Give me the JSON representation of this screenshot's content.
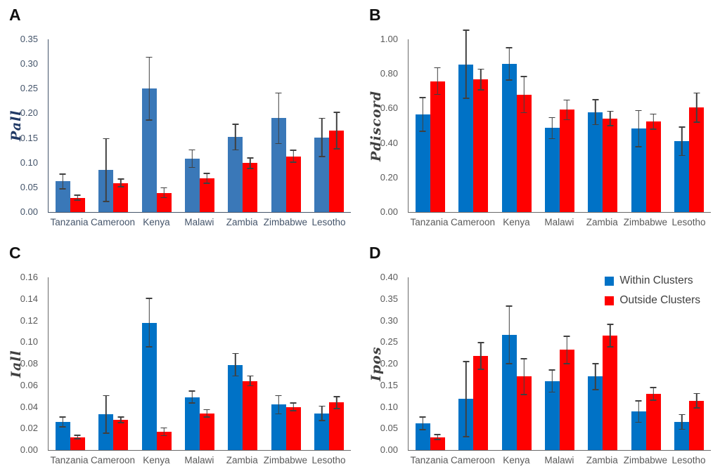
{
  "legend": {
    "items": [
      {
        "label": "Within Clusters",
        "color": "#0072C6"
      },
      {
        "label": "Outside Clusters",
        "color": "#FF0000"
      }
    ],
    "position": "top-right-of-panel-D"
  },
  "chart_data": [
    {
      "type": "bar",
      "panel": "A",
      "ylabel": "Pall",
      "categories": [
        "Tanzania",
        "Cameroon",
        "Kenya",
        "Malawi",
        "Zambia",
        "Zimbabwe",
        "Lesotho"
      ],
      "ylim": [
        0,
        0.35
      ],
      "ytick_step": 0.05,
      "grid": false,
      "error_bars": true,
      "axis_color": "#44546A",
      "tick_color": "#44546A",
      "ylabel_color": "#1F3864",
      "series": [
        {
          "name": "Within Clusters",
          "color": "#3A78B8",
          "values": [
            0.062,
            0.085,
            0.25,
            0.108,
            0.152,
            0.19,
            0.151
          ],
          "errors": [
            0.016,
            0.065,
            0.065,
            0.019,
            0.027,
            0.052,
            0.04
          ]
        },
        {
          "name": "Outside Clusters",
          "color": "#FF0000",
          "values": [
            0.029,
            0.059,
            0.039,
            0.068,
            0.099,
            0.113,
            0.165
          ],
          "errors": [
            0.006,
            0.009,
            0.011,
            0.011,
            0.012,
            0.013,
            0.038
          ]
        }
      ]
    },
    {
      "type": "bar",
      "panel": "B",
      "ylabel": "Pdiscord",
      "categories": [
        "Tanzania",
        "Cameroon",
        "Kenya",
        "Malawi",
        "Zambia",
        "Zimbabwe",
        "Lesotho"
      ],
      "ylim": [
        0,
        1.0
      ],
      "ytick_step": 0.2,
      "grid": false,
      "error_bars": true,
      "axis_color": "#6A6A6A",
      "tick_color": "#595959",
      "ylabel_color": "#3F3F3F",
      "series": [
        {
          "name": "Within Clusters",
          "color": "#0072C6",
          "values": [
            0.565,
            0.855,
            0.858,
            0.486,
            0.578,
            0.483,
            0.41
          ],
          "errors": [
            0.1,
            0.2,
            0.097,
            0.064,
            0.075,
            0.107,
            0.085
          ]
        },
        {
          "name": "Outside Clusters",
          "color": "#FF0000",
          "values": [
            0.758,
            0.768,
            0.68,
            0.592,
            0.541,
            0.524,
            0.605
          ],
          "errors": [
            0.08,
            0.063,
            0.107,
            0.06,
            0.045,
            0.047,
            0.087
          ]
        }
      ]
    },
    {
      "type": "bar",
      "panel": "C",
      "ylabel": "Iall",
      "categories": [
        "Tanzania",
        "Cameroon",
        "Kenya",
        "Malawi",
        "Zambia",
        "Zimbabwe",
        "Lesotho"
      ],
      "ylim": [
        0,
        0.16
      ],
      "ytick_step": 0.02,
      "grid": false,
      "error_bars": true,
      "axis_color": "#6A6A6A",
      "tick_color": "#595959",
      "ylabel_color": "#3F3F3F",
      "series": [
        {
          "name": "Within Clusters",
          "color": "#0072C6",
          "values": [
            0.026,
            0.033,
            0.118,
            0.049,
            0.079,
            0.042,
            0.034
          ],
          "errors": [
            0.005,
            0.018,
            0.023,
            0.006,
            0.011,
            0.009,
            0.007
          ]
        },
        {
          "name": "Outside Clusters",
          "color": "#FF0000",
          "values": [
            0.012,
            0.028,
            0.017,
            0.034,
            0.064,
            0.04,
            0.044
          ],
          "errors": [
            0.002,
            0.003,
            0.004,
            0.004,
            0.005,
            0.004,
            0.006
          ]
        }
      ]
    },
    {
      "type": "bar",
      "panel": "D",
      "ylabel": "Ipos",
      "categories": [
        "Tanzania",
        "Cameroon",
        "Kenya",
        "Malawi",
        "Zambia",
        "Zimbabwe",
        "Lesotho"
      ],
      "ylim": [
        0,
        0.4
      ],
      "ytick_step": 0.05,
      "grid": false,
      "error_bars": true,
      "axis_color": "#6A6A6A",
      "tick_color": "#595959",
      "ylabel_color": "#3F3F3F",
      "series": [
        {
          "name": "Within Clusters",
          "color": "#0072C6",
          "values": [
            0.062,
            0.118,
            0.267,
            0.16,
            0.17,
            0.089,
            0.065
          ],
          "errors": [
            0.016,
            0.088,
            0.068,
            0.027,
            0.031,
            0.026,
            0.018
          ]
        },
        {
          "name": "Outside Clusters",
          "color": "#FF0000",
          "values": [
            0.03,
            0.218,
            0.17,
            0.232,
            0.265,
            0.13,
            0.114
          ],
          "errors": [
            0.007,
            0.032,
            0.043,
            0.033,
            0.027,
            0.016,
            0.018
          ]
        }
      ]
    }
  ]
}
